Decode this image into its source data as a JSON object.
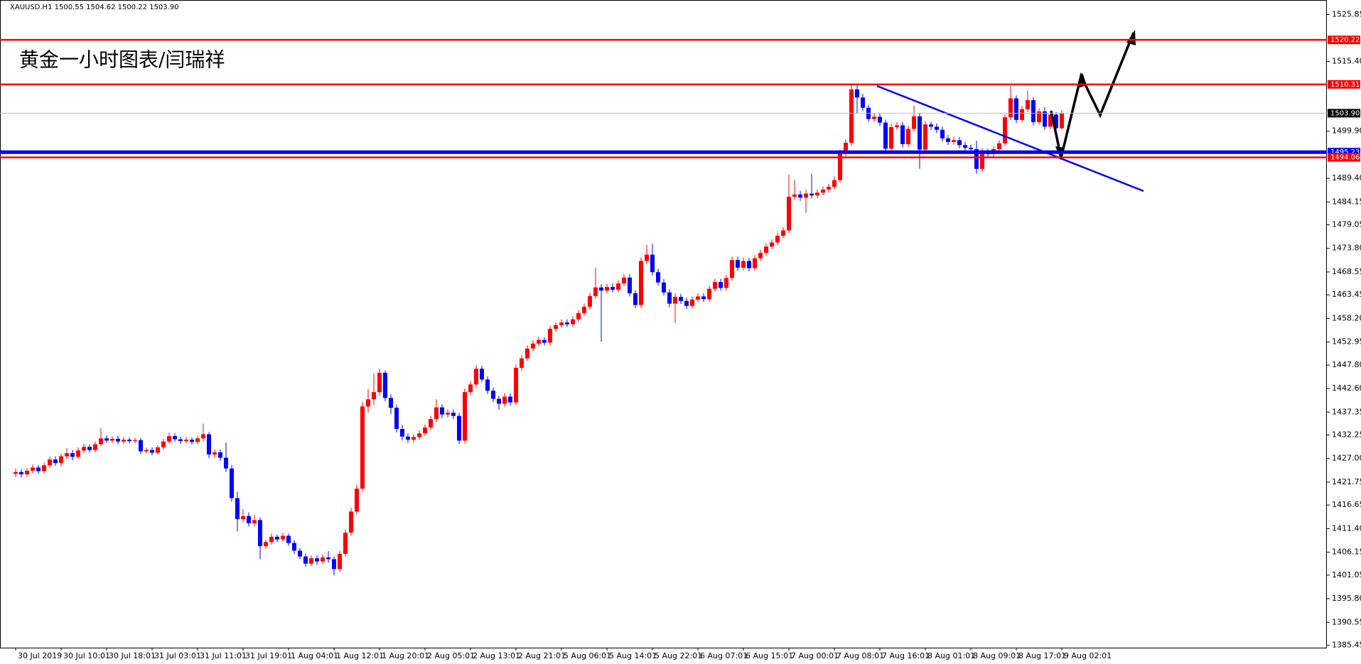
{
  "chart_data": {
    "type": "candlestick",
    "title": "XAUUSD.H1 1500.55 1504.62 1500.22 1503.90",
    "annotation": "黄金一小时图表/闫瑞祥",
    "up_color": "#ff0000",
    "down_color": "#0000ff",
    "categories": [
      "30 Jul 2019",
      null,
      null,
      null,
      null,
      null,
      null,
      null,
      "30 Jul 10:01",
      null,
      null,
      null,
      null,
      null,
      null,
      null,
      "30 Jul 18:01",
      null,
      null,
      null,
      null,
      null,
      null,
      null,
      "31 Jul 03:01",
      null,
      null,
      null,
      null,
      null,
      null,
      null,
      "31 Jul 11:01",
      null,
      null,
      null,
      null,
      null,
      null,
      null,
      "31 Jul 19:01",
      null,
      null,
      null,
      null,
      null,
      null,
      null,
      "1 Aug 04:01",
      null,
      null,
      null,
      null,
      null,
      null,
      null,
      "1 Aug 12:01",
      null,
      null,
      null,
      null,
      null,
      null,
      null,
      "1 Aug 20:01",
      null,
      null,
      null,
      null,
      null,
      null,
      null,
      "2 Aug 05:01",
      null,
      null,
      null,
      null,
      null,
      null,
      null,
      "2 Aug 13:01",
      null,
      null,
      null,
      null,
      null,
      null,
      null,
      "2 Aug 21:01",
      null,
      null,
      null,
      null,
      null,
      null,
      null,
      "5 Aug 06:01",
      null,
      null,
      null,
      null,
      null,
      null,
      null,
      "5 Aug 14:01",
      null,
      null,
      null,
      null,
      null,
      null,
      null,
      "5 Aug 22:01",
      null,
      null,
      null,
      null,
      null,
      null,
      null,
      "6 Aug 07:01",
      null,
      null,
      null,
      null,
      null,
      null,
      null,
      "6 Aug 15:01",
      null,
      null,
      null,
      null,
      null,
      null,
      null,
      "7 Aug 00:01",
      null,
      null,
      null,
      null,
      null,
      null,
      null,
      "7 Aug 08:01",
      null,
      null,
      null,
      null,
      null,
      null,
      null,
      "7 Aug 16:01",
      null,
      null,
      null,
      null,
      null,
      null,
      null,
      "8 Aug 01:01",
      null,
      null,
      null,
      null,
      null,
      null,
      null,
      "8 Aug 09:01",
      null,
      null,
      null,
      null,
      null,
      null,
      null,
      "8 Aug 17:01",
      null,
      null,
      null,
      null,
      null,
      null,
      null,
      "9 Aug 02:01"
    ],
    "open": [
      1423.6,
      1424.0,
      1423.5,
      1424.3,
      1425.0,
      1424.2,
      1425.5,
      1426.8,
      1426.0,
      1427.5,
      1428.2,
      1427.4,
      1428.8,
      1429.6,
      1428.9,
      1430.2,
      1431.5,
      1431.0,
      1431.4,
      1430.8,
      1431.2,
      1430.9,
      1431.1,
      1428.6,
      1428.9,
      1428.3,
      1429.5,
      1430.8,
      1432.0,
      1431.3,
      1430.9,
      1431.2,
      1430.7,
      1431.5,
      1432.4,
      1427.9,
      1428.4,
      1427.2,
      1424.8,
      1418.2,
      1413.5,
      1414.2,
      1412.6,
      1413.3,
      1407.5,
      1408.4,
      1409.6,
      1409.0,
      1409.8,
      1408.2,
      1406.5,
      1405.2,
      1403.6,
      1404.8,
      1404.1,
      1405.0,
      1404.6,
      1402.4,
      1405.8,
      1410.5,
      1415.2,
      1420.3,
      1438.6,
      1440.2,
      1441.8,
      1446.1,
      1440.5,
      1438.3,
      1433.6,
      1431.9,
      1431.2,
      1431.8,
      1432.6,
      1433.9,
      1435.8,
      1438.4,
      1436.8,
      1437.2,
      1436.5,
      1431.0,
      1441.8,
      1443.5,
      1447.0,
      1444.6,
      1442.1,
      1440.3,
      1439.2,
      1440.8,
      1439.5,
      1447.2,
      1449.3,
      1451.5,
      1452.6,
      1453.4,
      1452.8,
      1455.9,
      1456.7,
      1457.3,
      1456.9,
      1458.0,
      1459.4,
      1460.8,
      1463.2,
      1465.1,
      1464.4,
      1465.2,
      1464.6,
      1466.0,
      1467.3,
      1463.8,
      1461.2,
      1471.0,
      1472.4,
      1468.5,
      1466.2,
      1464.0,
      1461.5,
      1463.0,
      1462.1,
      1461.0,
      1462.4,
      1463.1,
      1462.5,
      1464.8,
      1466.3,
      1465.0,
      1467.2,
      1471.2,
      1469.5,
      1471.0,
      1469.4,
      1471.6,
      1472.8,
      1474.2,
      1475.1,
      1476.6,
      1477.8,
      1485.3,
      1485.8,
      1485.1,
      1486.0,
      1485.6,
      1486.2,
      1486.9,
      1487.5,
      1489.0,
      1495.0,
      1497.3,
      1509.2,
      1507.4,
      1505.1,
      1502.6,
      1503.1,
      1501.8,
      1496.0,
      1500.8,
      1501.2,
      1497.0,
      1500.4,
      1503.2,
      1495.8,
      1501.4,
      1500.9,
      1500.2,
      1498.3,
      1497.5,
      1497.9,
      1496.8,
      1496.2,
      1495.9,
      1491.5,
      1495.4,
      1494.8,
      1495.9,
      1497.2,
      1503.0,
      1507.2,
      1502.4,
      1504.8,
      1506.8,
      1501.9,
      1504.3,
      1500.9,
      1503.6,
      1500.55
    ],
    "high": [
      1424.8,
      1424.6,
      1424.9,
      1425.7,
      1425.6,
      1426.1,
      1427.4,
      1427.5,
      1428.1,
      1429.3,
      1428.9,
      1429.5,
      1430.3,
      1430.2,
      1430.8,
      1433.8,
      1432.1,
      1431.9,
      1432.0,
      1431.8,
      1431.7,
      1431.6,
      1431.6,
      1429.4,
      1429.5,
      1430.0,
      1431.4,
      1432.8,
      1432.6,
      1431.9,
      1431.8,
      1431.7,
      1432.1,
      1434.8,
      1432.9,
      1429.0,
      1429.0,
      1430.6,
      1425.6,
      1419.6,
      1415.8,
      1415.0,
      1414.4,
      1413.9,
      1408.9,
      1410.3,
      1410.1,
      1410.5,
      1410.3,
      1408.8,
      1407.1,
      1405.8,
      1405.4,
      1405.5,
      1405.7,
      1406.4,
      1405.2,
      1406.5,
      1411.2,
      1416.0,
      1421.2,
      1439.6,
      1442.5,
      1446.0,
      1446.9,
      1446.6,
      1441.3,
      1439.0,
      1434.5,
      1432.6,
      1432.4,
      1433.3,
      1434.6,
      1436.5,
      1440.2,
      1439.1,
      1438.0,
      1437.9,
      1437.2,
      1442.6,
      1444.2,
      1447.8,
      1447.7,
      1445.3,
      1442.8,
      1441.0,
      1441.6,
      1441.5,
      1448.0,
      1450.1,
      1452.2,
      1453.3,
      1454.1,
      1454.0,
      1456.6,
      1457.4,
      1458.0,
      1458.0,
      1458.7,
      1460.1,
      1461.5,
      1463.9,
      1469.5,
      1465.8,
      1465.9,
      1466.0,
      1466.7,
      1468.0,
      1468.1,
      1464.5,
      1471.8,
      1474.6,
      1474.8,
      1469.3,
      1467.0,
      1464.7,
      1463.8,
      1463.7,
      1462.8,
      1463.1,
      1463.8,
      1463.8,
      1465.5,
      1467.0,
      1467.0,
      1467.9,
      1472.0,
      1472.0,
      1471.7,
      1471.7,
      1472.3,
      1473.5,
      1474.9,
      1475.8,
      1477.3,
      1478.5,
      1490.2,
      1489.0,
      1486.6,
      1486.8,
      1490.4,
      1486.9,
      1487.6,
      1488.2,
      1489.8,
      1495.8,
      1498.1,
      1510.3,
      1510.3,
      1508.2,
      1505.8,
      1503.8,
      1503.8,
      1502.5,
      1501.5,
      1501.9,
      1501.9,
      1501.1,
      1505.6,
      1504.0,
      1502.1,
      1502.0,
      1501.6,
      1500.9,
      1499.0,
      1498.6,
      1498.6,
      1497.5,
      1496.9,
      1497.8,
      1496.1,
      1496.0,
      1496.6,
      1497.9,
      1503.7,
      1509.9,
      1507.9,
      1505.5,
      1508.9,
      1507.5,
      1505.0,
      1505.2,
      1504.3,
      1504.2,
      1504.62
    ],
    "low": [
      1422.9,
      1422.8,
      1422.9,
      1423.7,
      1423.6,
      1423.6,
      1425.0,
      1425.4,
      1425.3,
      1426.9,
      1426.6,
      1427.0,
      1428.2,
      1428.3,
      1428.4,
      1429.8,
      1430.5,
      1430.5,
      1430.2,
      1430.3,
      1430.4,
      1430.4,
      1428.0,
      1428.1,
      1427.7,
      1427.9,
      1429.0,
      1430.3,
      1430.8,
      1430.3,
      1430.4,
      1430.1,
      1430.2,
      1430.9,
      1427.1,
      1427.2,
      1426.5,
      1424.0,
      1417.4,
      1410.8,
      1412.8,
      1411.9,
      1411.9,
      1404.6,
      1406.9,
      1407.8,
      1408.4,
      1408.5,
      1407.6,
      1405.8,
      1404.6,
      1402.9,
      1403.0,
      1403.3,
      1403.5,
      1403.8,
      1401.0,
      1401.8,
      1405.2,
      1409.8,
      1414.5,
      1419.6,
      1437.2,
      1438.9,
      1441.0,
      1439.8,
      1436.9,
      1432.8,
      1431.0,
      1430.5,
      1430.6,
      1431.2,
      1432.0,
      1433.3,
      1435.1,
      1436.0,
      1436.1,
      1435.8,
      1430.3,
      1430.4,
      1441.1,
      1442.9,
      1444.0,
      1441.4,
      1439.6,
      1437.9,
      1438.6,
      1438.8,
      1438.9,
      1446.5,
      1448.7,
      1450.9,
      1452.0,
      1452.2,
      1452.2,
      1455.3,
      1456.1,
      1456.3,
      1456.3,
      1457.4,
      1458.8,
      1460.2,
      1462.6,
      1453.0,
      1463.8,
      1464.0,
      1464.0,
      1465.4,
      1463.1,
      1460.5,
      1460.5,
      1470.3,
      1467.8,
      1465.5,
      1463.3,
      1460.7,
      1457.2,
      1461.4,
      1460.3,
      1460.4,
      1461.8,
      1461.9,
      1461.9,
      1464.2,
      1464.4,
      1464.4,
      1466.6,
      1468.8,
      1468.9,
      1468.7,
      1468.8,
      1471.0,
      1472.2,
      1473.6,
      1474.5,
      1476.0,
      1477.2,
      1484.6,
      1484.4,
      1481.7,
      1484.9,
      1485.0,
      1485.6,
      1486.3,
      1486.9,
      1488.4,
      1494.3,
      1496.6,
      1503.8,
      1504.4,
      1502.0,
      1501.9,
      1501.1,
      1495.3,
      1495.4,
      1500.2,
      1496.3,
      1496.4,
      1499.8,
      1491.5,
      1495.2,
      1500.2,
      1499.5,
      1497.6,
      1496.8,
      1496.9,
      1496.1,
      1495.6,
      1495.3,
      1490.4,
      1490.8,
      1494.1,
      1494.2,
      1495.3,
      1496.6,
      1502.4,
      1501.7,
      1501.8,
      1504.2,
      1501.2,
      1501.3,
      1500.2,
      1500.3,
      1499.9,
      1500.22
    ],
    "close": [
      1424.0,
      1423.5,
      1424.3,
      1425.0,
      1424.2,
      1425.5,
      1426.8,
      1426.0,
      1427.5,
      1428.2,
      1427.4,
      1428.8,
      1429.6,
      1428.9,
      1430.2,
      1431.5,
      1431.0,
      1431.4,
      1430.8,
      1431.2,
      1430.9,
      1431.1,
      1428.6,
      1428.9,
      1428.3,
      1429.5,
      1430.8,
      1432.0,
      1431.3,
      1430.9,
      1431.2,
      1430.7,
      1431.5,
      1432.4,
      1427.9,
      1428.4,
      1427.2,
      1424.8,
      1418.2,
      1413.5,
      1414.2,
      1412.6,
      1413.3,
      1407.5,
      1408.4,
      1409.6,
      1409.0,
      1409.8,
      1408.2,
      1406.5,
      1405.2,
      1403.6,
      1404.8,
      1404.1,
      1405.0,
      1404.6,
      1402.4,
      1405.8,
      1410.5,
      1415.2,
      1420.3,
      1438.6,
      1440.2,
      1441.8,
      1446.1,
      1440.5,
      1438.3,
      1433.6,
      1431.9,
      1431.2,
      1431.8,
      1432.6,
      1433.9,
      1435.8,
      1438.4,
      1436.8,
      1437.2,
      1436.5,
      1431.0,
      1441.8,
      1443.5,
      1447.0,
      1444.6,
      1442.1,
      1440.3,
      1439.2,
      1440.8,
      1439.5,
      1447.2,
      1449.3,
      1451.5,
      1452.6,
      1453.4,
      1452.8,
      1455.9,
      1456.7,
      1457.3,
      1456.9,
      1458.0,
      1459.4,
      1460.8,
      1463.2,
      1465.1,
      1464.4,
      1465.2,
      1464.6,
      1466.0,
      1467.3,
      1463.8,
      1461.2,
      1471.0,
      1472.4,
      1468.5,
      1466.2,
      1464.0,
      1461.5,
      1463.0,
      1462.1,
      1461.0,
      1462.4,
      1463.1,
      1462.5,
      1464.8,
      1466.3,
      1465.0,
      1467.2,
      1471.2,
      1469.5,
      1471.0,
      1469.4,
      1471.6,
      1472.8,
      1474.2,
      1475.1,
      1476.6,
      1477.8,
      1485.3,
      1485.8,
      1485.1,
      1486.0,
      1485.6,
      1486.2,
      1486.9,
      1487.5,
      1489.0,
      1495.0,
      1497.3,
      1509.2,
      1507.4,
      1505.1,
      1502.6,
      1503.1,
      1501.8,
      1496.0,
      1500.8,
      1501.2,
      1497.0,
      1500.4,
      1503.2,
      1495.8,
      1501.4,
      1500.9,
      1500.2,
      1498.3,
      1497.5,
      1497.9,
      1496.8,
      1496.2,
      1495.9,
      1491.5,
      1495.4,
      1494.8,
      1495.9,
      1497.2,
      1503.0,
      1507.2,
      1502.4,
      1504.8,
      1506.8,
      1501.9,
      1504.3,
      1500.9,
      1503.6,
      1500.55,
      1503.9
    ],
    "ylim": [
      1384.9,
      1529.1
    ],
    "yticks": [
      1525.85,
      {
        "value": 1515.4,
        "label": "1515.40"
      },
      {
        "value": 1499.9,
        "label": "1499.90"
      },
      {
        "value": 1489.4,
        "label": "1489.40"
      },
      1484.15,
      1479.05,
      {
        "value": 1473.8,
        "label": "1473.80"
      },
      1468.55,
      1463.45,
      {
        "value": 1458.2,
        "label": "1458.20"
      },
      1452.95,
      {
        "value": 1447.8,
        "label": "1447.80"
      },
      {
        "value": 1442.6,
        "label": "1442.60"
      },
      1437.35,
      1432.25,
      {
        "value": 1427,
        "label": "1427.00"
      },
      1421.75,
      1416.65,
      {
        "value": 1411.4,
        "label": "1411.40"
      },
      1406.15,
      1401.05,
      {
        "value": 1395.8,
        "label": "1395.80"
      },
      1390.55,
      1385.45
    ],
    "levels": [
      {
        "value": 1520.22,
        "color": "#ff0000"
      },
      {
        "value": 1510.31,
        "color": "#ff0000"
      },
      {
        "value": 1495.23,
        "color": "#0000ff"
      },
      {
        "value": 1494.06,
        "color": "#ff0000"
      }
    ],
    "current": {
      "value": 1503.9,
      "label": "1503.90",
      "color": "#c0c0c0"
    }
  }
}
